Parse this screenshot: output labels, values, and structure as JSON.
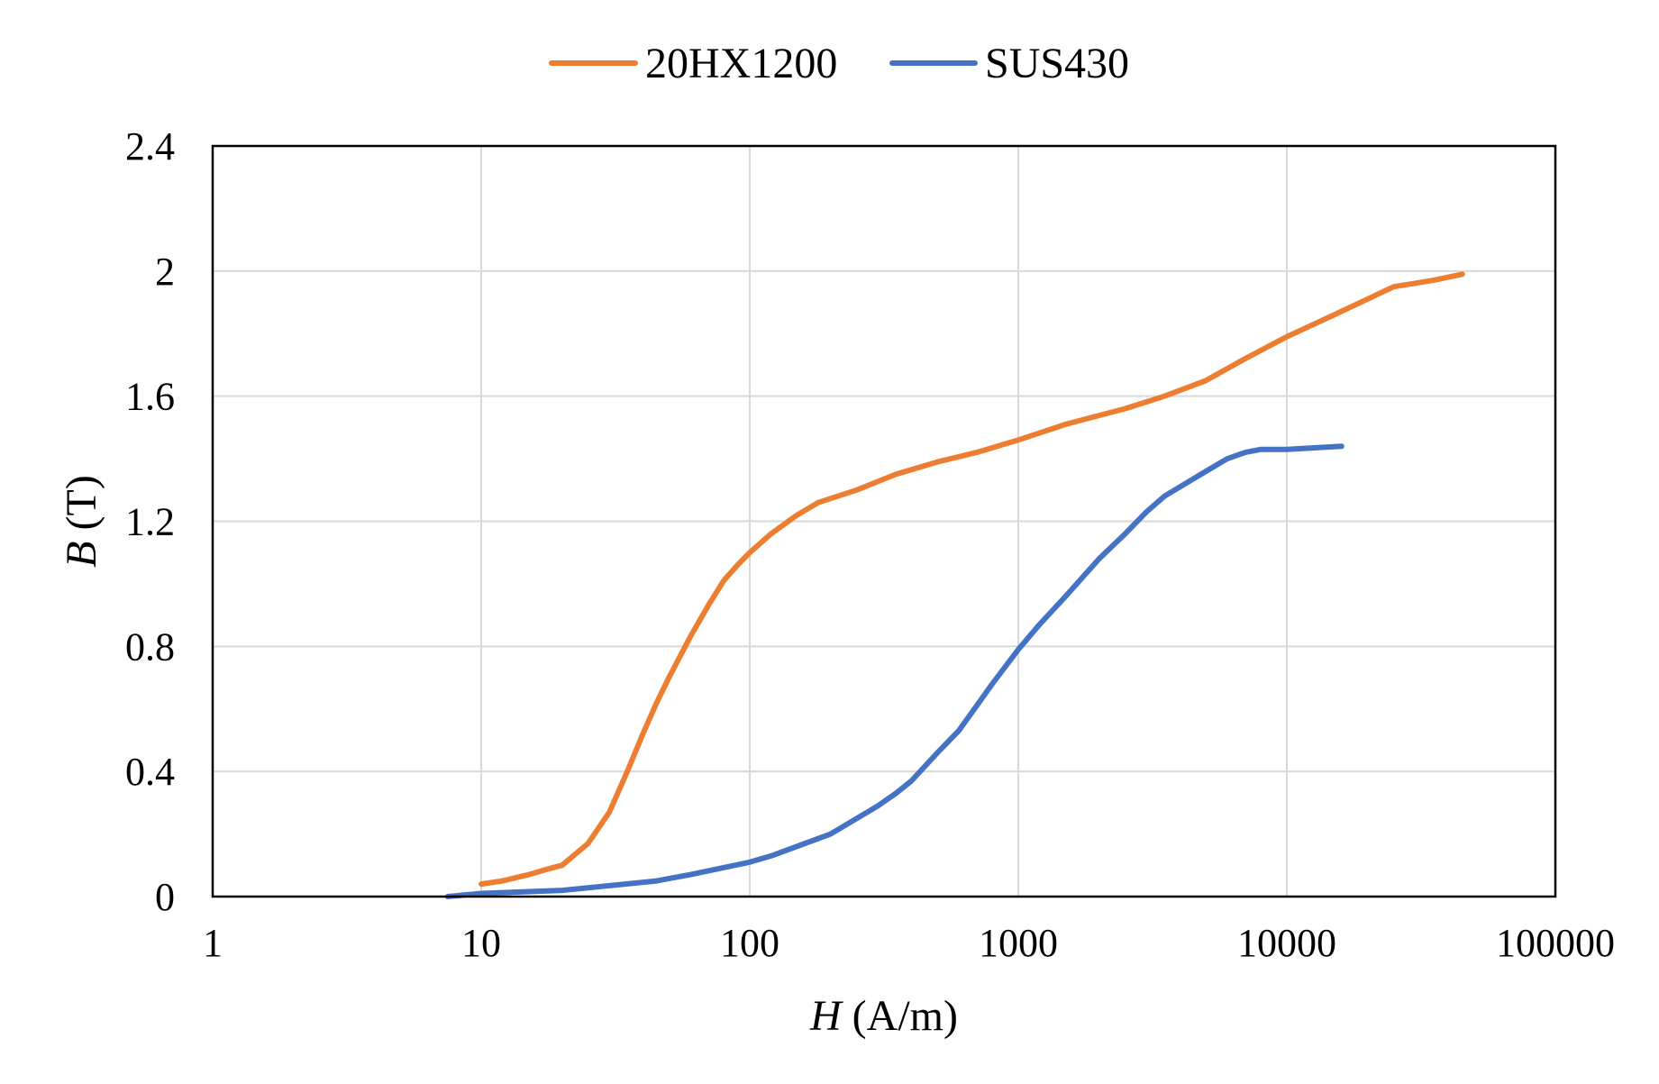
{
  "chart_data": {
    "type": "line",
    "xscale": "log",
    "xlim": [
      1,
      100000
    ],
    "ylim": [
      0,
      2.4
    ],
    "xticks": [
      1,
      10,
      100,
      1000,
      10000,
      100000
    ],
    "yticks": [
      0,
      0.4,
      0.8,
      1.2,
      1.6,
      2,
      2.4
    ],
    "xtick_labels": [
      "1",
      "10",
      "100",
      "1000",
      "10000",
      "100000"
    ],
    "ytick_labels": [
      "0",
      "0.4",
      "0.8",
      "1.2",
      "1.6",
      "2",
      "2.4"
    ],
    "xlabel_symbol": "H",
    "xlabel_unit": " (A/m)",
    "ylabel_symbol": "B",
    "ylabel_unit": " (T)",
    "grid": true,
    "legend_position": "top-center",
    "series": [
      {
        "name": "20HX1200",
        "color": "#ED7D31",
        "x": [
          10,
          12,
          15,
          18,
          20,
          25,
          30,
          35,
          40,
          45,
          50,
          60,
          70,
          80,
          90,
          100,
          120,
          150,
          180,
          250,
          350,
          500,
          700,
          1000,
          1500,
          2500,
          3500,
          5000,
          7000,
          10000,
          15000,
          25000,
          35000,
          45000
        ],
        "y": [
          0.04,
          0.05,
          0.07,
          0.09,
          0.1,
          0.17,
          0.27,
          0.4,
          0.52,
          0.62,
          0.7,
          0.83,
          0.93,
          1.01,
          1.06,
          1.1,
          1.16,
          1.22,
          1.26,
          1.3,
          1.35,
          1.39,
          1.42,
          1.46,
          1.51,
          1.56,
          1.6,
          1.65,
          1.72,
          1.79,
          1.86,
          1.95,
          1.97,
          1.99
        ]
      },
      {
        "name": "SUS430",
        "color": "#4472C4",
        "x": [
          7.5,
          10,
          20,
          45,
          60,
          100,
          120,
          200,
          300,
          350,
          400,
          500,
          600,
          700,
          800,
          1000,
          1200,
          1500,
          2000,
          2500,
          3000,
          3500,
          4000,
          5000,
          6000,
          7000,
          8000,
          10000,
          16000
        ],
        "y": [
          0.0,
          0.01,
          0.02,
          0.05,
          0.07,
          0.11,
          0.13,
          0.2,
          0.29,
          0.33,
          0.37,
          0.46,
          0.53,
          0.61,
          0.68,
          0.79,
          0.87,
          0.96,
          1.08,
          1.16,
          1.23,
          1.28,
          1.31,
          1.36,
          1.4,
          1.42,
          1.43,
          1.43,
          1.44
        ]
      }
    ]
  }
}
